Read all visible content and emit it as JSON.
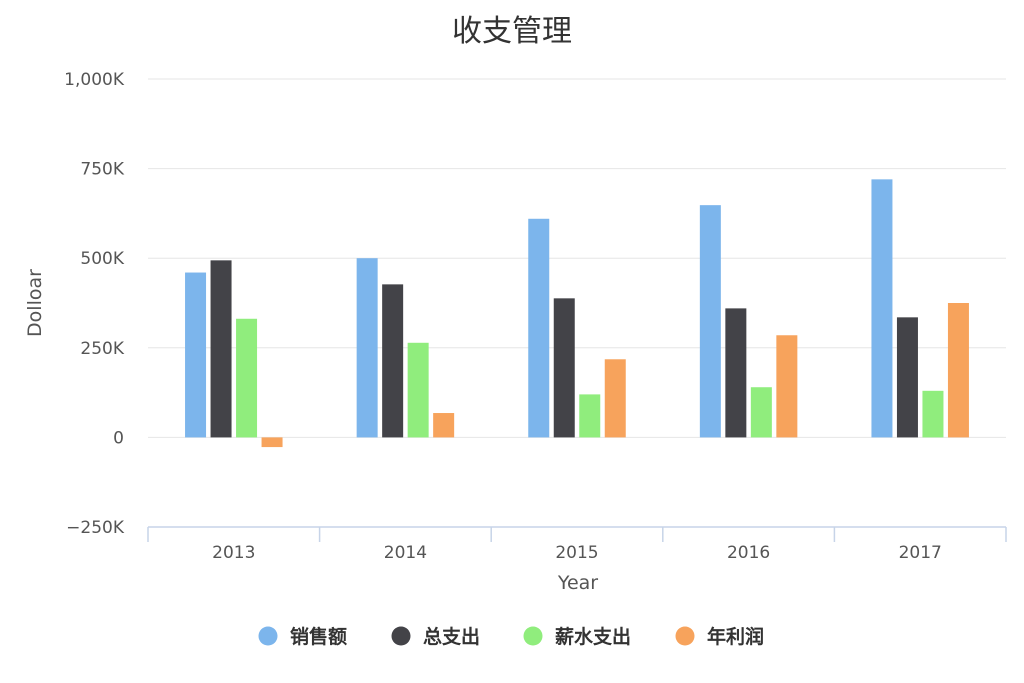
{
  "chart_data": {
    "type": "bar",
    "title": "收支管理",
    "xlabel": "Year",
    "ylabel": "Dolloar",
    "categories": [
      "2013",
      "2014",
      "2015",
      "2016",
      "2017"
    ],
    "ylim": [
      -250000,
      1000000
    ],
    "yticks": [
      1000000,
      750000,
      500000,
      250000,
      0,
      -250000
    ],
    "ytick_labels": [
      "1,000K",
      "750K",
      "500K",
      "250K",
      "0",
      "−250K"
    ],
    "grid": true,
    "legend_position": "bottom",
    "series": [
      {
        "name": "销售额",
        "color": "#7cb5ec",
        "values": [
          460000,
          500000,
          610000,
          648000,
          720000
        ]
      },
      {
        "name": "总支出",
        "color": "#434348",
        "values": [
          494000,
          427000,
          388000,
          360000,
          335000
        ]
      },
      {
        "name": "薪水支出",
        "color": "#90ed7d",
        "values": [
          331000,
          264000,
          120000,
          140000,
          130000
        ]
      },
      {
        "name": "年利润",
        "color": "#f7a35c",
        "values": [
          -27000,
          68000,
          218000,
          285000,
          375000
        ]
      }
    ]
  }
}
